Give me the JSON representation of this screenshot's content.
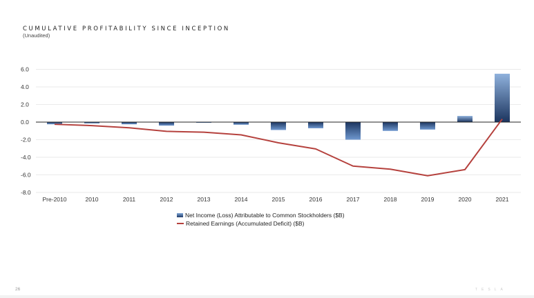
{
  "page": {
    "title": "CUMULATIVE PROFITABILITY SINCE INCEPTION",
    "subtitle": "(Unaudited)",
    "page_number": "26",
    "brand": "TESLA"
  },
  "chart_data": {
    "type": "bar",
    "categories": [
      "Pre-2010",
      "2010",
      "2011",
      "2012",
      "2013",
      "2014",
      "2015",
      "2016",
      "2017",
      "2018",
      "2019",
      "2020",
      "2021"
    ],
    "y_ticks": [
      "6.0",
      "4.0",
      "2.0",
      "0.0",
      "-2.0",
      "-4.0",
      "-6.0",
      "-8.0"
    ],
    "ylim": [
      -8,
      6
    ],
    "grid": true,
    "legend_position": "bottom",
    "series": [
      {
        "name": "Net Income (Loss) Attributable to Common Stockholders ($B)",
        "type": "bar",
        "color": "#2d5591",
        "values": [
          -0.25,
          -0.15,
          -0.25,
          -0.4,
          -0.08,
          -0.3,
          -0.9,
          -0.7,
          -2.0,
          -1.0,
          -0.85,
          0.7,
          5.5
        ]
      },
      {
        "name": "Retained Earnings (Accumulated Deficit) ($B)",
        "type": "line",
        "color": "#b5413d",
        "values": [
          -0.25,
          -0.4,
          -0.65,
          -1.05,
          -1.15,
          -1.45,
          -2.35,
          -3.05,
          -5.0,
          -5.35,
          -6.1,
          -5.4,
          0.35
        ]
      }
    ]
  }
}
